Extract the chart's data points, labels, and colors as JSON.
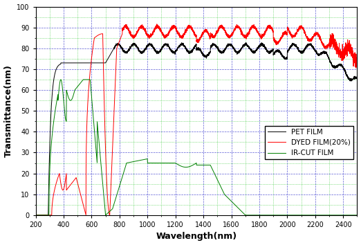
{
  "xlabel": "Wavelength(nm)",
  "ylabel": "Transmittance(nm)",
  "xlim": [
    200,
    2500
  ],
  "ylim": [
    0,
    100
  ],
  "xticks": [
    200,
    400,
    600,
    800,
    1000,
    1200,
    1400,
    1600,
    1800,
    2000,
    2200,
    2400
  ],
  "yticks": [
    0,
    10,
    20,
    30,
    40,
    50,
    60,
    70,
    80,
    90,
    100
  ],
  "legend": [
    "PET FILM",
    "DYED FILM(20%)",
    "IR-CUT FILM"
  ],
  "grid_major_color": "#3333cc",
  "grid_minor_color": "#00bb00"
}
